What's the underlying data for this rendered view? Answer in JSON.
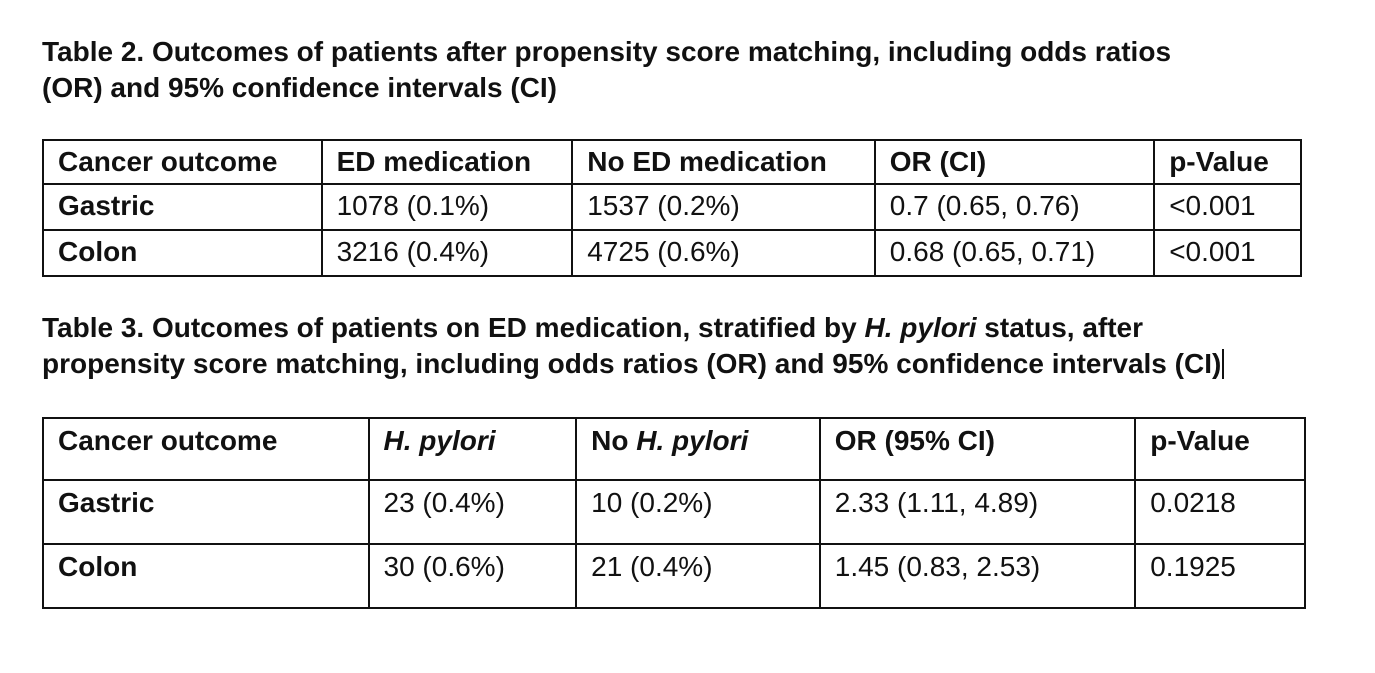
{
  "table2": {
    "caption": "Table 2. Outcomes of patients after propensity score matching, including odds ratios",
    "caption_line2": "(OR) and 95% confidence intervals (CI)",
    "headers": [
      "Cancer outcome",
      "ED medication",
      "No ED medication",
      "OR (CI)",
      "p-Value"
    ],
    "rows": [
      [
        "Gastric",
        "1078 (0.1%)",
        "1537 (0.2%)",
        "0.7 (0.65, 0.76)",
        "<0.001"
      ],
      [
        "Colon",
        "3216 (0.4%)",
        "4725 (0.6%)",
        "0.68 (0.65, 0.71)",
        "<0.001"
      ]
    ]
  },
  "table3": {
    "caption_part1": "Table 3. Outcomes of patients on ED medication, stratified by ",
    "caption_italic": "H. pylori",
    "caption_part2": " status, after",
    "caption_line2": "propensity score matching, including odds ratios (OR) and 95% confidence intervals (CI)",
    "headers": {
      "outcome": "Cancer outcome",
      "hpylori": "H. pylori",
      "no_prefix": "No ",
      "no_italic": "H. pylori",
      "or": "OR (95% CI)",
      "p": "p-Value"
    },
    "rows": [
      [
        "Gastric",
        "23 (0.4%)",
        "10 (0.2%)",
        "2.33 (1.11, 4.89)",
        "0.0218"
      ],
      [
        "Colon",
        "30 (0.6%)",
        "21 (0.4%)",
        "1.45 (0.83, 2.53)",
        "0.1925"
      ]
    ]
  }
}
